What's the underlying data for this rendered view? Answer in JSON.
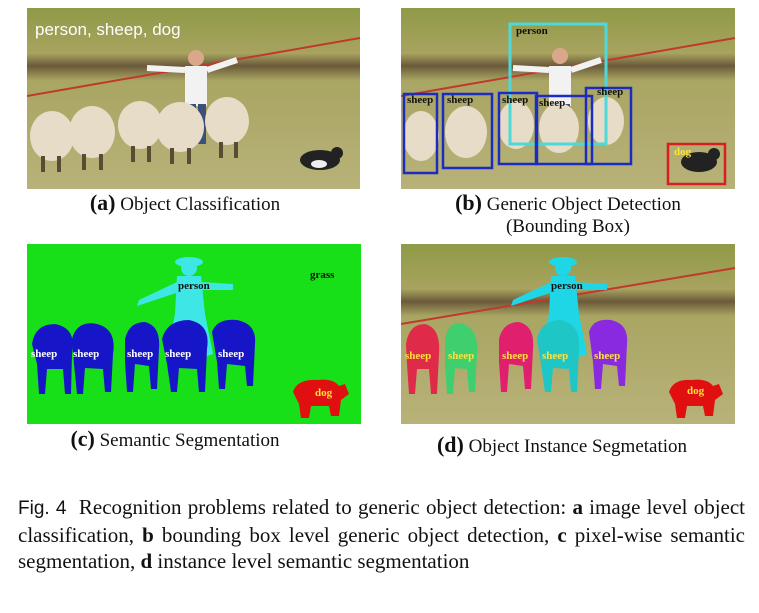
{
  "panels": {
    "a": {
      "overlay_text": "person, sheep, dog",
      "letter": "(a)",
      "caption": "Object Classification"
    },
    "b": {
      "letter": "(b)",
      "caption_line1": "Generic Object Detection",
      "caption_line2": "(Bounding Box)",
      "labels": {
        "person": "person",
        "sheep": "sheep",
        "dog": "dog"
      }
    },
    "c": {
      "letter": "(c)",
      "caption": "Semantic Segmentation",
      "labels": {
        "person": "person",
        "sheep": "sheep",
        "dog": "dog",
        "grass": "grass"
      }
    },
    "d": {
      "letter": "(d)",
      "caption": "Object Instance Segmetation",
      "labels": {
        "person": "person",
        "sheep": "sheep",
        "dog": "dog"
      }
    }
  },
  "figure_caption": {
    "label": "Fig. 4",
    "text_1": "Recognition problems related to generic object detection: ",
    "a": "a",
    "text_2": " image level object classification, ",
    "b": "b",
    "text_3": " bounding box level generic object detection, ",
    "c": "c",
    "text_4": " pixel-wise semantic segmentation, ",
    "d": "d",
    "text_5": " instance level semantic segmentation"
  },
  "colors": {
    "grass": "#9aa35a",
    "semantic_background": "#18e018",
    "semantic_sheep": "#1616c8",
    "semantic_person": "#3ee6e6",
    "semantic_dog": "#e01010",
    "box_person": "#4fd8d8",
    "box_sheep": "#1c2cc0",
    "box_dog": "#d81e1e",
    "label_yellow": "#ffe23a",
    "instance_sheep": [
      "#e02a4a",
      "#3fcf6e",
      "#e0206e",
      "#1fc6c6",
      "#8a2ae0"
    ]
  }
}
